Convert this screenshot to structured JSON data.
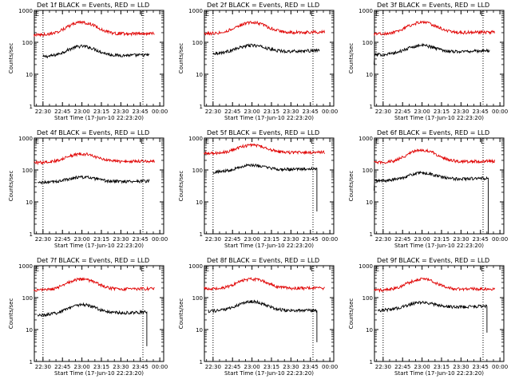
{
  "chart_data": [
    {
      "type": "line",
      "title": "Det 1f BLACK = Events, RED = LLD",
      "xlabel": "Start Time (17-Jun-10 22:23:20)",
      "ylabel": "Counts/sec",
      "yscale": "log",
      "ylim": [
        1,
        1000
      ],
      "ytick_labels": [
        "1",
        "10",
        "100",
        "1000"
      ],
      "x_tick_labels": [
        "22:30",
        "22:45",
        "23:00",
        "23:15",
        "23:30",
        "23:45",
        "00:00"
      ],
      "dotted_vlines": [
        "22:30",
        "23:47"
      ],
      "corner_markers": [
        "E",
        "E"
      ],
      "series": [
        {
          "color": "#000000",
          "start": "22:30",
          "end": "23:52",
          "base": 35,
          "peak": 75,
          "tail": 40,
          "drop_to": null
        },
        {
          "color": "#e00000",
          "start": "22:23",
          "end": "23:56",
          "base": 170,
          "peak": 420,
          "tail": 190,
          "drop_to": null
        }
      ]
    },
    {
      "type": "line",
      "title": "Det 2f BLACK = Events, RED = LLD",
      "xlabel": "Start Time (17-Jun-10 22:23:20)",
      "ylabel": "Counts/sec",
      "yscale": "log",
      "ylim": [
        1,
        1000
      ],
      "ytick_labels": [
        "1",
        "10",
        "100",
        "1000"
      ],
      "x_tick_labels": [
        "22:30",
        "22:45",
        "23:00",
        "23:15",
        "23:30",
        "23:45",
        "00:00"
      ],
      "dotted_vlines": [
        "22:30",
        "23:47"
      ],
      "corner_markers": [
        "E",
        "E"
      ],
      "series": [
        {
          "color": "#000000",
          "start": "22:30",
          "end": "23:52",
          "base": 45,
          "peak": 80,
          "tail": 55,
          "drop_to": null
        },
        {
          "color": "#e00000",
          "start": "22:23",
          "end": "23:56",
          "base": 190,
          "peak": 420,
          "tail": 210,
          "drop_to": null
        }
      ]
    },
    {
      "type": "line",
      "title": "Det 3f BLACK = Events, RED = LLD",
      "xlabel": "Start Time (17-Jun-10 22:23:20)",
      "ylabel": "Counts/sec",
      "yscale": "log",
      "ylim": [
        1,
        1000
      ],
      "ytick_labels": [
        "1",
        "10",
        "100",
        "1000"
      ],
      "x_tick_labels": [
        "22:30",
        "22:45",
        "23:00",
        "23:15",
        "23:30",
        "23:45",
        "00:00"
      ],
      "dotted_vlines": [
        "22:30",
        "23:47"
      ],
      "corner_markers": [
        "E",
        "E"
      ],
      "series": [
        {
          "color": "#000000",
          "start": "22:23",
          "end": "23:52",
          "base": 40,
          "peak": 80,
          "tail": 55,
          "drop_to": null
        },
        {
          "color": "#e00000",
          "start": "22:23",
          "end": "23:56",
          "base": 180,
          "peak": 420,
          "tail": 210,
          "drop_to": null
        }
      ]
    },
    {
      "type": "line",
      "title": "Det 4f BLACK = Events, RED = LLD",
      "xlabel": "Start Time (17-Jun-10 22:23:20)",
      "ylabel": "Counts/sec",
      "yscale": "log",
      "ylim": [
        1,
        1000
      ],
      "ytick_labels": [
        "1",
        "10",
        "100",
        "1000"
      ],
      "x_tick_labels": [
        "22:30",
        "22:45",
        "23:00",
        "23:15",
        "23:30",
        "23:45",
        "00:00"
      ],
      "dotted_vlines": [
        "22:30",
        "23:47"
      ],
      "corner_markers": [
        "E",
        "E"
      ],
      "series": [
        {
          "color": "#000000",
          "start": "22:26",
          "end": "23:52",
          "base": 40,
          "peak": 60,
          "tail": 45,
          "drop_to": null
        },
        {
          "color": "#e00000",
          "start": "22:23",
          "end": "23:56",
          "base": 170,
          "peak": 320,
          "tail": 190,
          "drop_to": null
        }
      ]
    },
    {
      "type": "line",
      "title": "Det 5f BLACK = Events, RED = LLD",
      "xlabel": "Start Time (17-Jun-10 22:23:20)",
      "ylabel": "Counts/sec",
      "yscale": "log",
      "ylim": [
        1,
        1000
      ],
      "ytick_labels": [
        "1",
        "10",
        "100",
        "1000"
      ],
      "x_tick_labels": [
        "22:30",
        "22:45",
        "23:00",
        "23:15",
        "23:30",
        "23:45",
        "00:00"
      ],
      "dotted_vlines": [
        "22:30",
        "23:47"
      ],
      "corner_markers": [
        "E",
        "E"
      ],
      "series": [
        {
          "color": "#000000",
          "start": "22:30",
          "end": "23:50",
          "base": 85,
          "peak": 140,
          "tail": 110,
          "drop_to": 5
        },
        {
          "color": "#e00000",
          "start": "22:23",
          "end": "23:56",
          "base": 330,
          "peak": 600,
          "tail": 360,
          "drop_to": null
        }
      ]
    },
    {
      "type": "line",
      "title": "Det 6f BLACK = Events, RED = LLD",
      "xlabel": "Start Time (17-Jun-10 22:23:20)",
      "ylabel": "Counts/sec",
      "yscale": "log",
      "ylim": [
        1,
        1000
      ],
      "ytick_labels": [
        "1",
        "10",
        "100",
        "1000"
      ],
      "x_tick_labels": [
        "22:30",
        "22:45",
        "23:00",
        "23:15",
        "23:30",
        "23:45",
        "00:00"
      ],
      "dotted_vlines": [
        "22:30",
        "23:47"
      ],
      "corner_markers": [
        "E",
        "E"
      ],
      "series": [
        {
          "color": "#000000",
          "start": "22:23",
          "end": "23:51",
          "base": 45,
          "peak": 80,
          "tail": 55,
          "drop_to": 1
        },
        {
          "color": "#e00000",
          "start": "22:23",
          "end": "23:56",
          "base": 170,
          "peak": 420,
          "tail": 190,
          "drop_to": null
        }
      ]
    },
    {
      "type": "line",
      "title": "Det 7f BLACK = Events, RED = LLD",
      "xlabel": "Start Time (17-Jun-10 22:23:20)",
      "ylabel": "Counts/sec",
      "yscale": "log",
      "ylim": [
        1,
        1000
      ],
      "ytick_labels": [
        "1",
        "10",
        "100",
        "1000"
      ],
      "x_tick_labels": [
        "22:30",
        "22:45",
        "23:00",
        "23:15",
        "23:30",
        "23:45",
        "00:00"
      ],
      "dotted_vlines": [
        "22:30",
        "23:47"
      ],
      "corner_markers": [
        "E",
        "E"
      ],
      "series": [
        {
          "color": "#000000",
          "start": "22:26",
          "end": "23:50",
          "base": 28,
          "peak": 60,
          "tail": 35,
          "drop_to": 3
        },
        {
          "color": "#e00000",
          "start": "22:23",
          "end": "23:56",
          "base": 170,
          "peak": 380,
          "tail": 190,
          "drop_to": null
        }
      ]
    },
    {
      "type": "line",
      "title": "Det 8f BLACK = Events, RED = LLD",
      "xlabel": "Start Time (17-Jun-10 22:23:20)",
      "ylabel": "Counts/sec",
      "yscale": "log",
      "ylim": [
        1,
        1000
      ],
      "ytick_labels": [
        "1",
        "10",
        "100",
        "1000"
      ],
      "x_tick_labels": [
        "22:30",
        "22:45",
        "23:00",
        "23:15",
        "23:30",
        "23:45",
        "00:00"
      ],
      "dotted_vlines": [
        "22:30",
        "23:47"
      ],
      "corner_markers": [
        "E",
        "E"
      ],
      "series": [
        {
          "color": "#000000",
          "start": "22:26",
          "end": "23:50",
          "base": 38,
          "peak": 75,
          "tail": 40,
          "drop_to": 4
        },
        {
          "color": "#e00000",
          "start": "22:23",
          "end": "23:56",
          "base": 190,
          "peak": 380,
          "tail": 200,
          "drop_to": null
        }
      ]
    },
    {
      "type": "line",
      "title": "Det 9f BLACK = Events, RED = LLD",
      "xlabel": "Start Time (17-Jun-10 22:23:20)",
      "ylabel": "Counts/sec",
      "yscale": "log",
      "ylim": [
        1,
        1000
      ],
      "ytick_labels": [
        "1",
        "10",
        "100",
        "1000"
      ],
      "x_tick_labels": [
        "22:30",
        "22:45",
        "23:00",
        "23:15",
        "23:30",
        "23:45",
        "00:00"
      ],
      "dotted_vlines": [
        "22:30",
        "23:47"
      ],
      "corner_markers": [
        "E",
        "E"
      ],
      "series": [
        {
          "color": "#000000",
          "start": "22:26",
          "end": "23:50",
          "base": 40,
          "peak": 70,
          "tail": 55,
          "drop_to": 8
        },
        {
          "color": "#e00000",
          "start": "22:23",
          "end": "23:56",
          "base": 170,
          "peak": 380,
          "tail": 190,
          "drop_to": null
        }
      ]
    }
  ]
}
